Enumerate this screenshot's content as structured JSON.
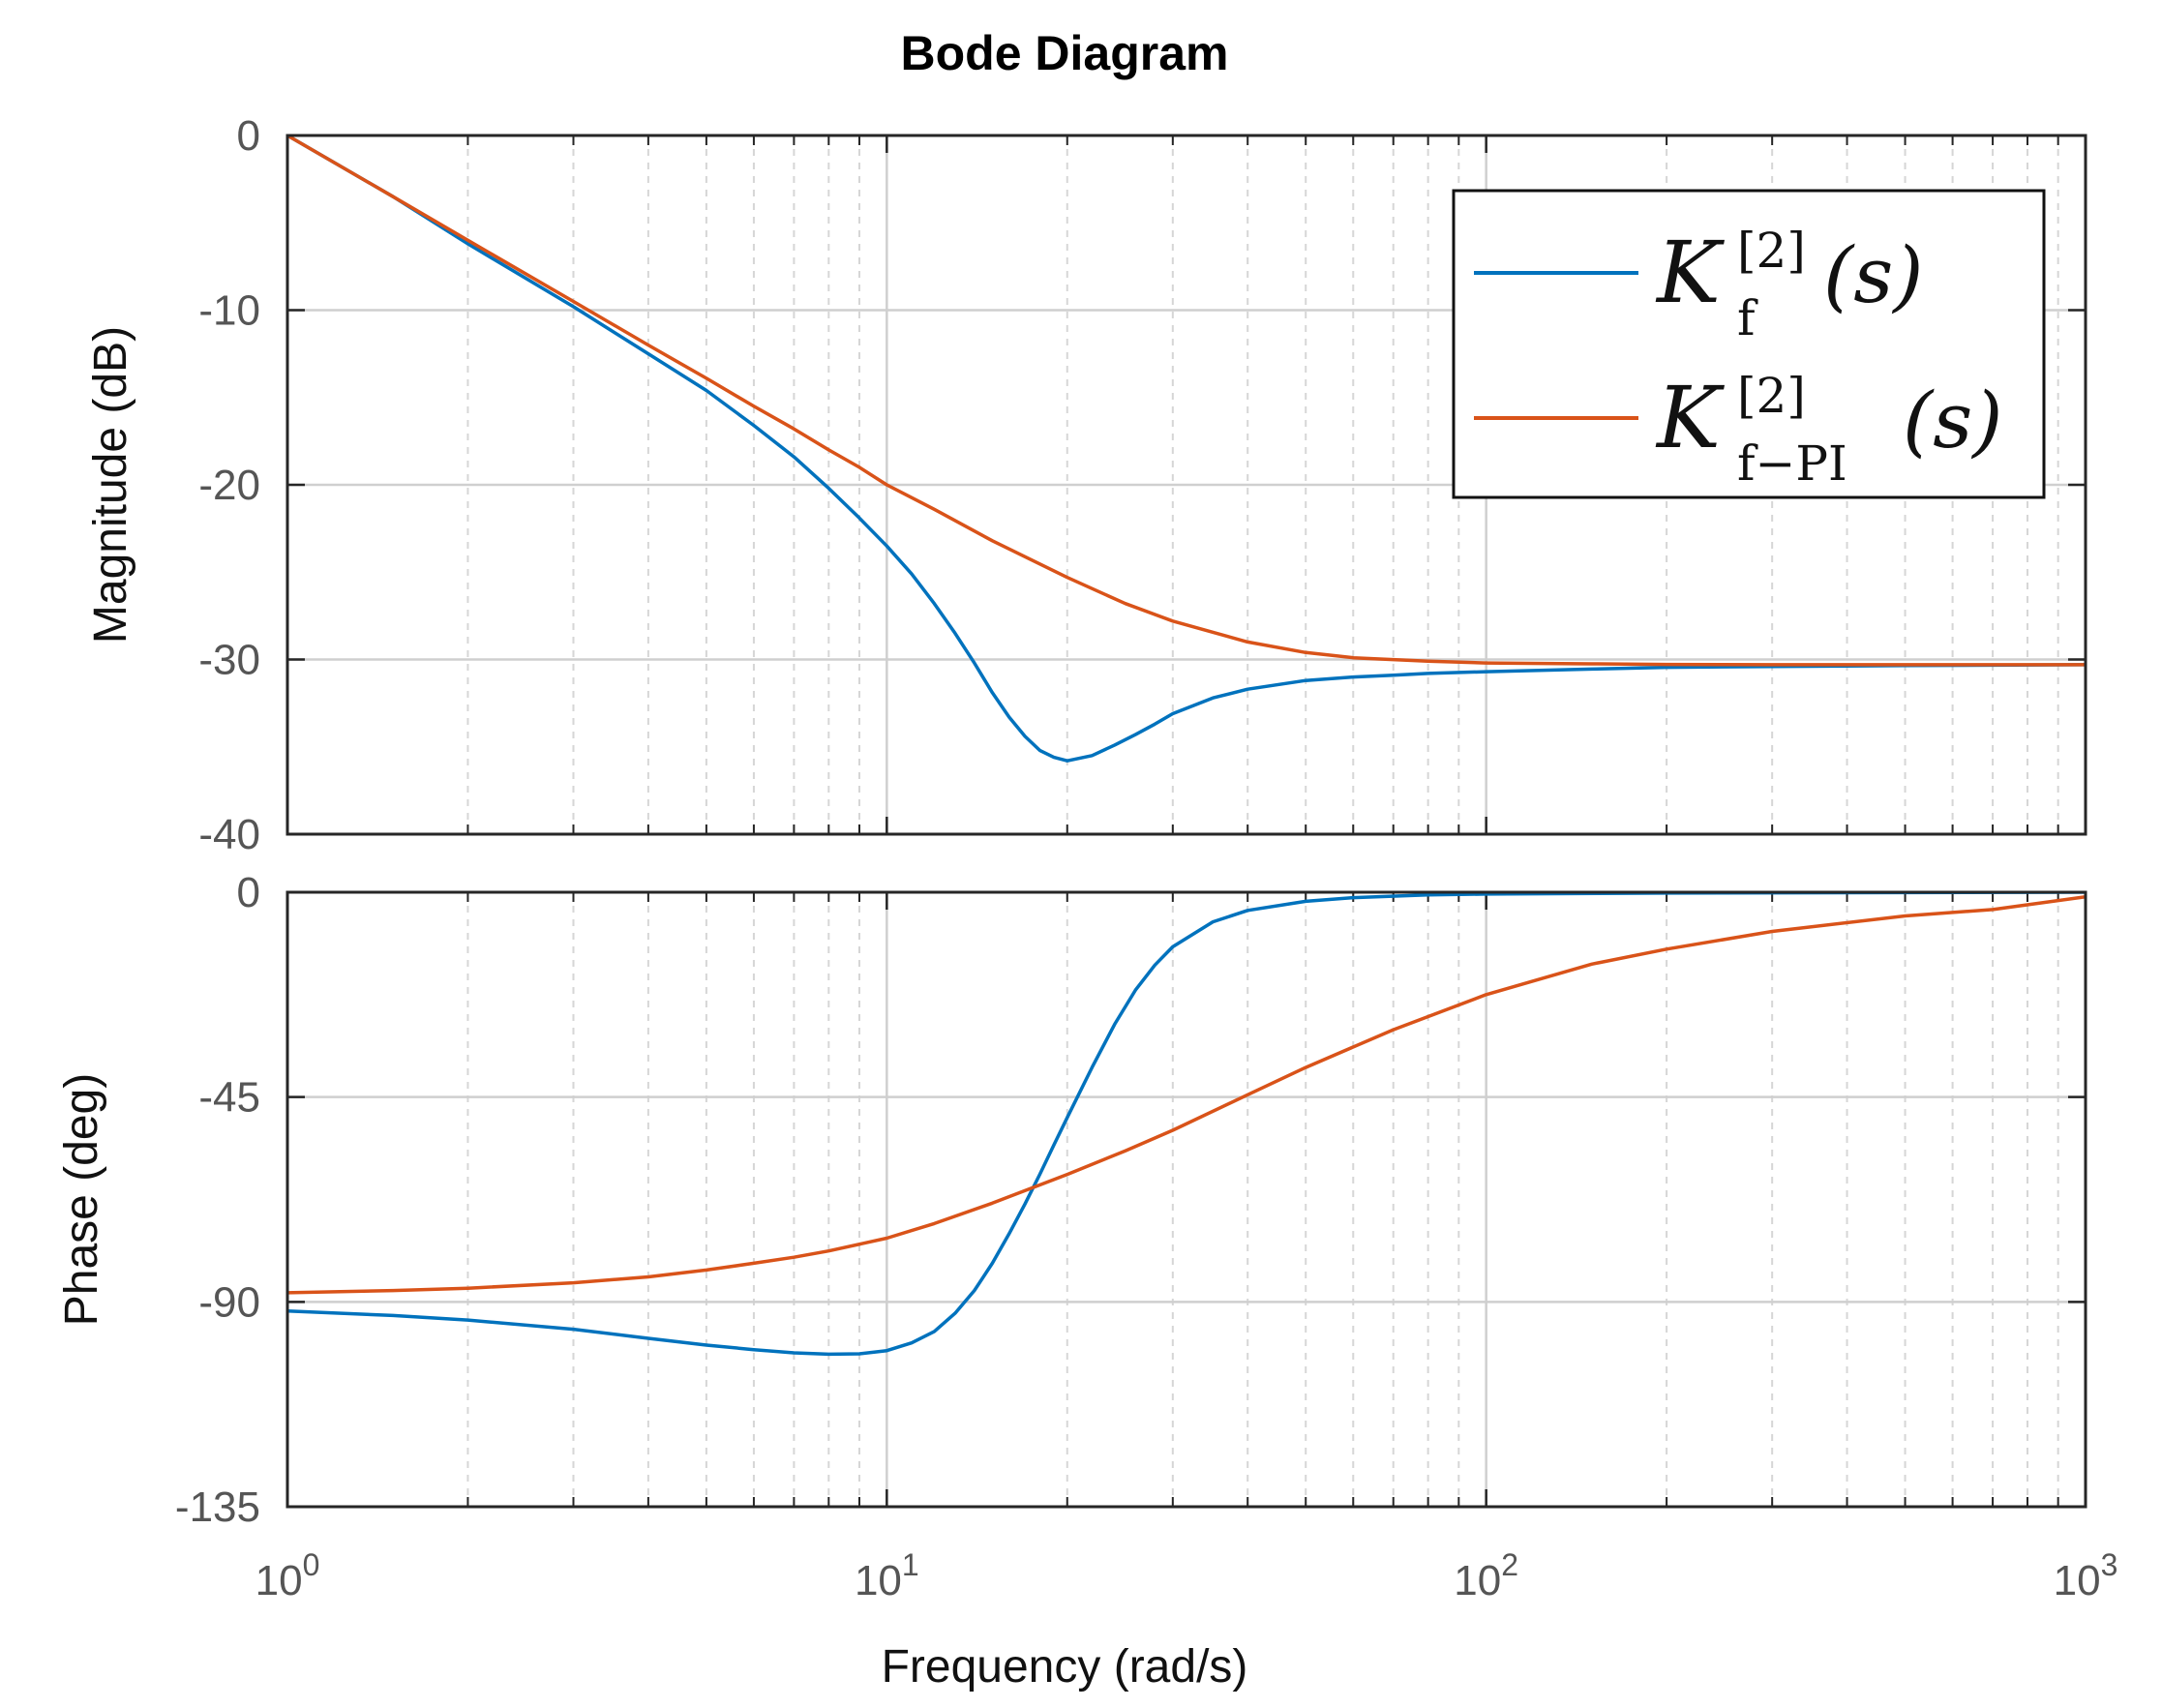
{
  "chart_data": {
    "type": "line",
    "title": "Bode Diagram",
    "xlabel": "Frequency  (rad/s)",
    "xscale": "log",
    "xlim": [
      1,
      1000
    ],
    "x_ticks": [
      {
        "value": 1,
        "base": "10",
        "exp": "0"
      },
      {
        "value": 10,
        "base": "10",
        "exp": "1"
      },
      {
        "value": 100,
        "base": "10",
        "exp": "2"
      },
      {
        "value": 1000,
        "base": "10",
        "exp": "3"
      }
    ],
    "grid": true,
    "legend": {
      "placement": "top-right",
      "entries": [
        {
          "series": "Kf",
          "sym": "K",
          "sub": "f",
          "sup": "[2]",
          "arg": "(s)",
          "color": "#0072BD"
        },
        {
          "series": "KfPI",
          "sym": "K",
          "sub": "f−PI",
          "sup": "[2]",
          "arg": "(s)",
          "color": "#D95319"
        }
      ]
    },
    "panels": [
      {
        "name": "magnitude",
        "ylabel": "Magnitude (dB)",
        "ylim": [
          -40,
          0
        ],
        "yticks": [
          0,
          -10,
          -20,
          -30,
          -40
        ],
        "ytick_labels": [
          "0",
          "-10",
          "-20",
          "-30",
          "-40"
        ],
        "series": [
          {
            "name": "Kf",
            "color": "#0072BD",
            "x": [
              1,
              1.5,
              2,
              3,
              4,
              5,
              6,
              7,
              8,
              9,
              10,
              11,
              12,
              13,
              14,
              15,
              16,
              17,
              18,
              19,
              20,
              22,
              24,
              26,
              28,
              30,
              35,
              40,
              50,
              60,
              70,
              80,
              100,
              150,
              200,
              300,
              500,
              1000
            ],
            "y": [
              0,
              -3.5,
              -6.2,
              -9.8,
              -12.5,
              -14.6,
              -16.6,
              -18.4,
              -20.2,
              -21.9,
              -23.5,
              -25.1,
              -26.8,
              -28.5,
              -30.2,
              -31.9,
              -33.3,
              -34.4,
              -35.2,
              -35.6,
              -35.8,
              -35.5,
              -34.9,
              -34.3,
              -33.7,
              -33.1,
              -32.2,
              -31.7,
              -31.2,
              -31.0,
              -30.9,
              -30.8,
              -30.7,
              -30.55,
              -30.45,
              -30.4,
              -30.35,
              -30.3
            ]
          },
          {
            "name": "KfPI",
            "color": "#D95319",
            "x": [
              1,
              1.5,
              2,
              3,
              4,
              5,
              6,
              7,
              8,
              9,
              10,
              12,
              15,
              20,
              25,
              30,
              40,
              50,
              60,
              80,
              100,
              150,
              200,
              300,
              500,
              1000
            ],
            "y": [
              0,
              -3.5,
              -6.0,
              -9.5,
              -12.0,
              -13.9,
              -15.5,
              -16.8,
              -18.0,
              -19.0,
              -20.0,
              -21.4,
              -23.2,
              -25.3,
              -26.8,
              -27.8,
              -29.0,
              -29.6,
              -29.9,
              -30.1,
              -30.2,
              -30.25,
              -30.28,
              -30.3,
              -30.3,
              -30.3
            ]
          }
        ]
      },
      {
        "name": "phase",
        "ylabel": "Phase (deg)",
        "ylim": [
          -135,
          0
        ],
        "yticks": [
          0,
          -45,
          -90,
          -135
        ],
        "ytick_labels": [
          "0",
          "-45",
          "-90",
          "-135"
        ],
        "series": [
          {
            "name": "Kf",
            "color": "#0072BD",
            "x": [
              1,
              1.5,
              2,
              3,
              4,
              5,
              6,
              7,
              8,
              9,
              10,
              11,
              12,
              13,
              14,
              15,
              16,
              17,
              18,
              19,
              20,
              22,
              24,
              26,
              28,
              30,
              35,
              40,
              50,
              60,
              80,
              100,
              200,
              1000
            ],
            "y": [
              -92,
              -93,
              -94,
              -96,
              -98,
              -99.5,
              -100.5,
              -101.2,
              -101.5,
              -101.4,
              -100.7,
              -99,
              -96.5,
              -92.5,
              -87.5,
              -81.5,
              -75,
              -68.5,
              -62,
              -55.5,
              -49.5,
              -38.5,
              -29,
              -21.5,
              -16,
              -12,
              -6.5,
              -4,
              -2,
              -1.2,
              -0.6,
              -0.4,
              -0.2,
              0
            ]
          },
          {
            "name": "KfPI",
            "color": "#D95319",
            "x": [
              1,
              1.5,
              2,
              3,
              4,
              5,
              6,
              7,
              8,
              10,
              12,
              15,
              20,
              25,
              30,
              40,
              50,
              70,
              100,
              150,
              200,
              300,
              500,
              700,
              1000
            ],
            "y": [
              -88,
              -87.5,
              -87,
              -85.8,
              -84.5,
              -83,
              -81.5,
              -80.2,
              -78.8,
              -76,
              -72.8,
              -68.3,
              -62,
              -56.8,
              -52.3,
              -44.5,
              -38.5,
              -30.2,
              -22.5,
              -15.8,
              -12.5,
              -8.6,
              -5.2,
              -3.8,
              -1
            ]
          }
        ]
      }
    ]
  }
}
